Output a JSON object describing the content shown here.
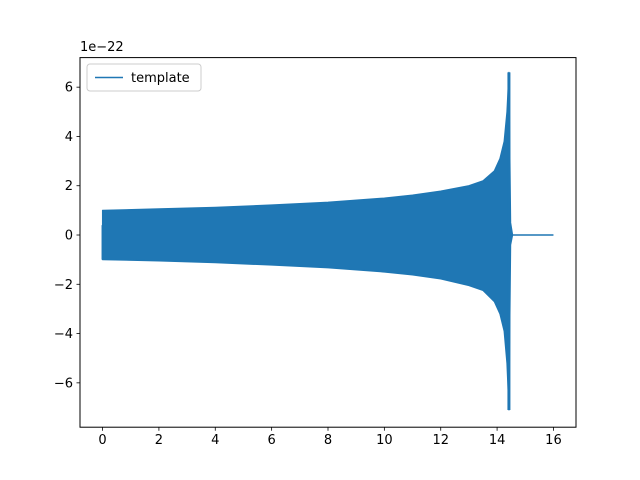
{
  "chart_data": {
    "type": "line",
    "title": "",
    "xlabel": "",
    "ylabel": "",
    "offset_label": "1e−22",
    "xlim": [
      -0.8,
      16.8
    ],
    "ylim": [
      -7.8,
      7.2
    ],
    "x_ticks": [
      0,
      2,
      4,
      6,
      8,
      10,
      12,
      14,
      16
    ],
    "x_tick_labels": [
      "0",
      "2",
      "4",
      "6",
      "8",
      "10",
      "12",
      "14",
      "16"
    ],
    "y_ticks": [
      -6,
      -4,
      -2,
      0,
      2,
      4,
      6
    ],
    "y_tick_labels": [
      "−6",
      "−4",
      "−2",
      "0",
      "2",
      "4",
      "6"
    ],
    "grid": false,
    "legend": {
      "position": "upper-left"
    },
    "series": [
      {
        "name": "template",
        "color": "#1f77b4",
        "signal_start": 0.0,
        "merger_time": 14.42,
        "end_time": 16.0,
        "max": 6.6,
        "min": -7.1,
        "envelope": [
          {
            "x": 0.0,
            "upper": 1.0,
            "lower": -1.0
          },
          {
            "x": 2.0,
            "upper": 1.06,
            "lower": -1.05
          },
          {
            "x": 4.0,
            "upper": 1.12,
            "lower": -1.12
          },
          {
            "x": 6.0,
            "upper": 1.22,
            "lower": -1.22
          },
          {
            "x": 8.0,
            "upper": 1.33,
            "lower": -1.33
          },
          {
            "x": 10.0,
            "upper": 1.5,
            "lower": -1.5
          },
          {
            "x": 11.0,
            "upper": 1.62,
            "lower": -1.62
          },
          {
            "x": 12.0,
            "upper": 1.78,
            "lower": -1.78
          },
          {
            "x": 13.0,
            "upper": 2.0,
            "lower": -2.05
          },
          {
            "x": 13.5,
            "upper": 2.2,
            "lower": -2.25
          },
          {
            "x": 13.9,
            "upper": 2.6,
            "lower": -2.7
          },
          {
            "x": 14.1,
            "upper": 3.1,
            "lower": -3.2
          },
          {
            "x": 14.25,
            "upper": 3.8,
            "lower": -3.9
          },
          {
            "x": 14.35,
            "upper": 5.0,
            "lower": -5.2
          },
          {
            "x": 14.42,
            "upper": 6.6,
            "lower": -7.1
          },
          {
            "x": 14.48,
            "upper": 0.5,
            "lower": -0.4
          },
          {
            "x": 14.55,
            "upper": 0.0,
            "lower": 0.0
          }
        ]
      }
    ]
  }
}
